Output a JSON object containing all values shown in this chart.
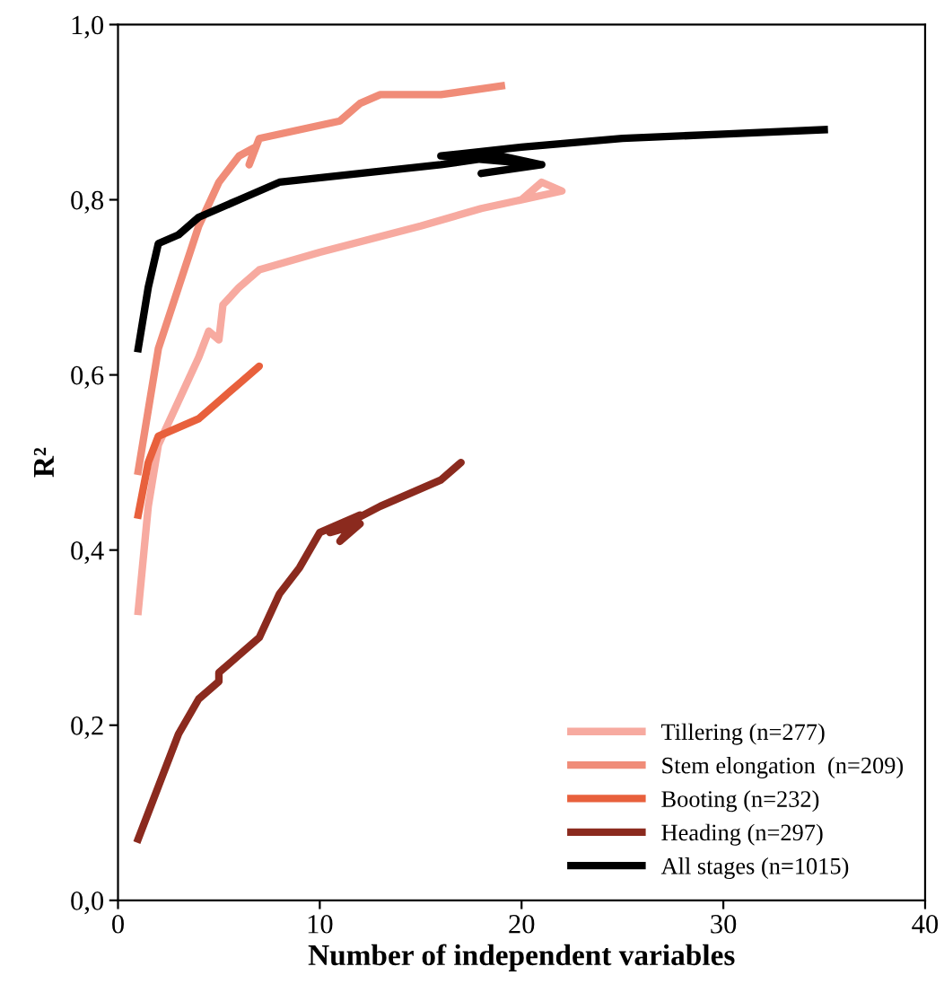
{
  "chart_data": {
    "type": "line",
    "xlabel": "Number of independent variables",
    "ylabel": "R²",
    "xlim": [
      0,
      40
    ],
    "xticks": [
      0,
      10,
      20,
      30,
      40
    ],
    "ylim": [
      0,
      1
    ],
    "yticks": [
      {
        "value": 0,
        "label": "0,0"
      },
      {
        "value": 0.2,
        "label": "0,2"
      },
      {
        "value": 0.4,
        "label": "0,4"
      },
      {
        "value": 0.6,
        "label": "0,6"
      },
      {
        "value": 0.8,
        "label": "0,8"
      },
      {
        "value": 1,
        "label": "1,0"
      }
    ],
    "grid": false,
    "legend": "bottom right",
    "marker": "none",
    "line_style": "solid",
    "series": [
      {
        "name": "Tillering (n=277)",
        "color": "#f7aaa0",
        "x": [
          1,
          1.5,
          2,
          3,
          4,
          4.5,
          5,
          5.2,
          6,
          7,
          10,
          15,
          18,
          20,
          21,
          22,
          20
        ],
        "values": [
          0.33,
          0.45,
          0.52,
          0.57,
          0.62,
          0.65,
          0.64,
          0.68,
          0.7,
          0.72,
          0.74,
          0.77,
          0.79,
          0.8,
          0.82,
          0.81,
          0.8
        ]
      },
      {
        "name": "Stem elongation  (n=209)",
        "color": "#f08c78",
        "x": [
          1,
          1.5,
          2,
          3,
          4,
          5,
          6,
          6.8,
          6.5,
          7,
          9,
          11,
          12,
          13,
          16,
          19
        ],
        "values": [
          0.49,
          0.56,
          0.63,
          0.7,
          0.77,
          0.82,
          0.85,
          0.86,
          0.84,
          0.87,
          0.88,
          0.89,
          0.91,
          0.92,
          0.92,
          0.93
        ]
      },
      {
        "name": "Booting (n=232)",
        "color": "#e8603c",
        "x": [
          1,
          1.5,
          2,
          3,
          4,
          5,
          6,
          7,
          6.5
        ],
        "values": [
          0.44,
          0.5,
          0.53,
          0.54,
          0.55,
          0.57,
          0.59,
          0.61,
          0.6
        ]
      },
      {
        "name": "Heading (n=297)",
        "color": "#8b2a1e",
        "x": [
          1,
          2,
          3,
          4,
          5,
          5,
          6,
          7,
          8,
          9,
          10,
          12,
          11,
          12,
          10.5,
          13,
          15,
          16,
          17,
          16.5
        ],
        "values": [
          0.07,
          0.13,
          0.19,
          0.23,
          0.25,
          0.26,
          0.28,
          0.3,
          0.35,
          0.38,
          0.42,
          0.44,
          0.41,
          0.43,
          0.42,
          0.45,
          0.47,
          0.48,
          0.5,
          0.49
        ]
      },
      {
        "name": "All stages (n=1015)",
        "color": "#000000",
        "x": [
          1,
          1.5,
          2,
          3,
          4,
          6,
          8,
          12,
          16,
          19,
          21,
          18,
          21,
          16,
          20,
          25,
          30,
          35
        ],
        "values": [
          0.63,
          0.7,
          0.75,
          0.76,
          0.78,
          0.8,
          0.82,
          0.83,
          0.84,
          0.85,
          0.84,
          0.83,
          0.84,
          0.85,
          0.86,
          0.87,
          0.875,
          0.88
        ]
      }
    ]
  }
}
